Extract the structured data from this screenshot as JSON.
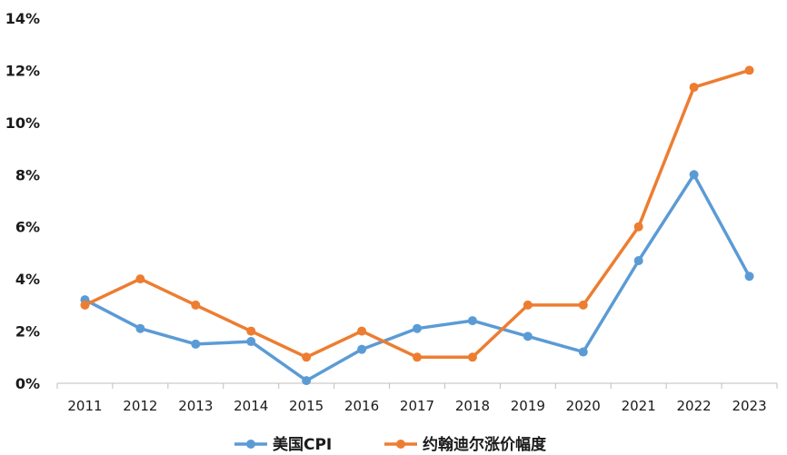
{
  "chart_data": {
    "type": "line",
    "title": "",
    "xlabel": "",
    "ylabel": "",
    "categories": [
      "2011",
      "2012",
      "2013",
      "2014",
      "2015",
      "2016",
      "2017",
      "2018",
      "2019",
      "2020",
      "2021",
      "2022",
      "2023"
    ],
    "y_ticks": [
      "0%",
      "2%",
      "4%",
      "6%",
      "8%",
      "10%",
      "12%",
      "14%"
    ],
    "ylim": [
      0,
      14
    ],
    "y_unit": "%",
    "grid": false,
    "legend_position": "bottom",
    "series": [
      {
        "name": "美国CPI",
        "color": "#5B9BD5",
        "values": [
          3.2,
          2.1,
          1.5,
          1.6,
          0.1,
          1.3,
          2.1,
          2.4,
          1.8,
          1.2,
          4.7,
          8.0,
          4.1
        ]
      },
      {
        "name": "约翰迪尔涨价幅度",
        "color": "#ED7D31",
        "values": [
          3.0,
          4.0,
          3.0,
          2.0,
          1.0,
          2.0,
          1.0,
          1.0,
          3.0,
          3.0,
          6.0,
          11.35,
          12.0
        ]
      }
    ]
  }
}
